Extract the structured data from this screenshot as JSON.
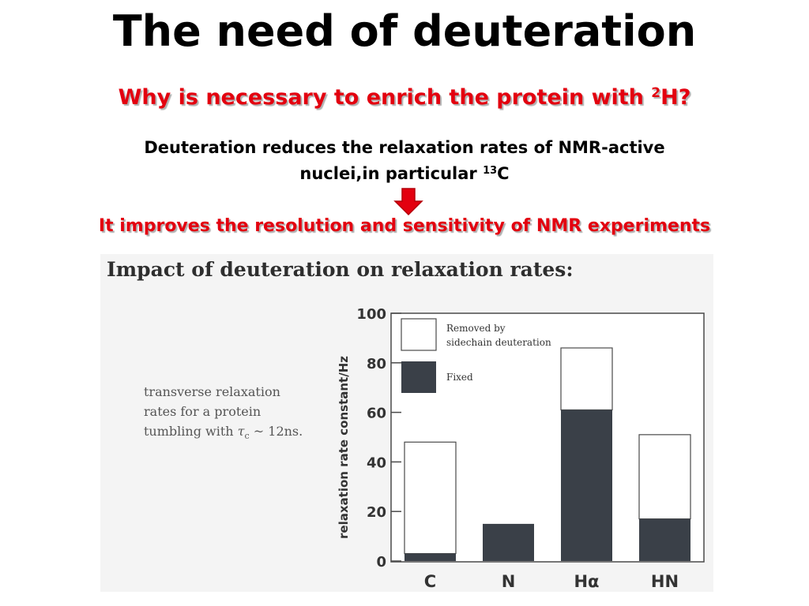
{
  "slide": {
    "title": "The need of deuteration",
    "question_main": "Why is necessary to enrich the protein with ",
    "question_sup": "2",
    "question_tail": "H?",
    "body_line1": "Deuteration reduces the relaxation rates of NMR-active",
    "body_line2_main": "nuclei,in particular ",
    "body_line2_sup": "13",
    "body_line2_tail": "C",
    "conclusion": "It improves the resolution and sensitivity of NMR experiments",
    "arrow_icon": "down-arrow-icon",
    "colors": {
      "accent": "#e3000f",
      "dark_bar": "#3a4048"
    }
  },
  "figure": {
    "title": "Impact of deuteration on relaxation rates:",
    "note_line1": "transverse relaxation",
    "note_line2": "rates for a protein",
    "note_line3_main": "tumbling with ",
    "note_tau": "τ",
    "note_tau_sub": "c",
    "note_line3_tail": " ~ 12ns."
  },
  "chart_data": {
    "type": "bar",
    "stacked": true,
    "categories": [
      "C",
      "N",
      "Hα",
      "HN"
    ],
    "series": [
      {
        "name": "Fixed",
        "values": [
          3,
          15,
          61,
          17
        ],
        "color": "#3a4048"
      },
      {
        "name": "Removed by sidechain deuteration",
        "values": [
          45,
          0,
          25,
          34
        ],
        "color": "#ffffff"
      }
    ],
    "legend": {
      "line1": "Removed by",
      "line2": "sidechain deuteration",
      "fixed": "Fixed"
    },
    "ylabel": "relaxation rate constant/Hz",
    "ylim": [
      0,
      100
    ],
    "yticks": [
      "0",
      "20",
      "40",
      "60",
      "80",
      "100"
    ],
    "legend_placement": "top-left"
  }
}
